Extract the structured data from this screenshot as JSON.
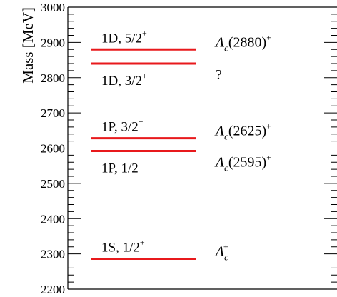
{
  "chart_data": {
    "type": "level-diagram",
    "ylabel": "Mass [MeV]",
    "ylim": [
      2200,
      3000
    ],
    "major_ticks": [
      2200,
      2300,
      2400,
      2500,
      2600,
      2700,
      2800,
      2900,
      3000
    ],
    "minor_tick_step": 20,
    "line_color": "#e8191c",
    "levels": [
      {
        "mass": 2286,
        "qn": "1S, 1/2",
        "parity": "+",
        "label_side": "above",
        "state": "Λ",
        "state_sub": "c",
        "state_sup": "+",
        "state_mass": ""
      },
      {
        "mass": 2592,
        "qn": "1P, 1/2",
        "parity": "−",
        "label_side": "below",
        "state": "Λ",
        "state_sub": "c",
        "state_sup": "+",
        "state_mass": "(2595)"
      },
      {
        "mass": 2628,
        "qn": "1P, 3/2",
        "parity": "−",
        "label_side": "above",
        "state": "Λ",
        "state_sub": "c",
        "state_sup": "+",
        "state_mass": "(2625)"
      },
      {
        "mass": 2840,
        "qn": "1D, 3/2",
        "parity": "+",
        "label_side": "below",
        "state": "?",
        "state_sub": "",
        "state_sup": "",
        "state_mass": ""
      },
      {
        "mass": 2880,
        "qn": "1D, 5/2",
        "parity": "+",
        "label_side": "above",
        "state": "Λ",
        "state_sub": "c",
        "state_sup": "+",
        "state_mass": "(2880)"
      }
    ]
  }
}
